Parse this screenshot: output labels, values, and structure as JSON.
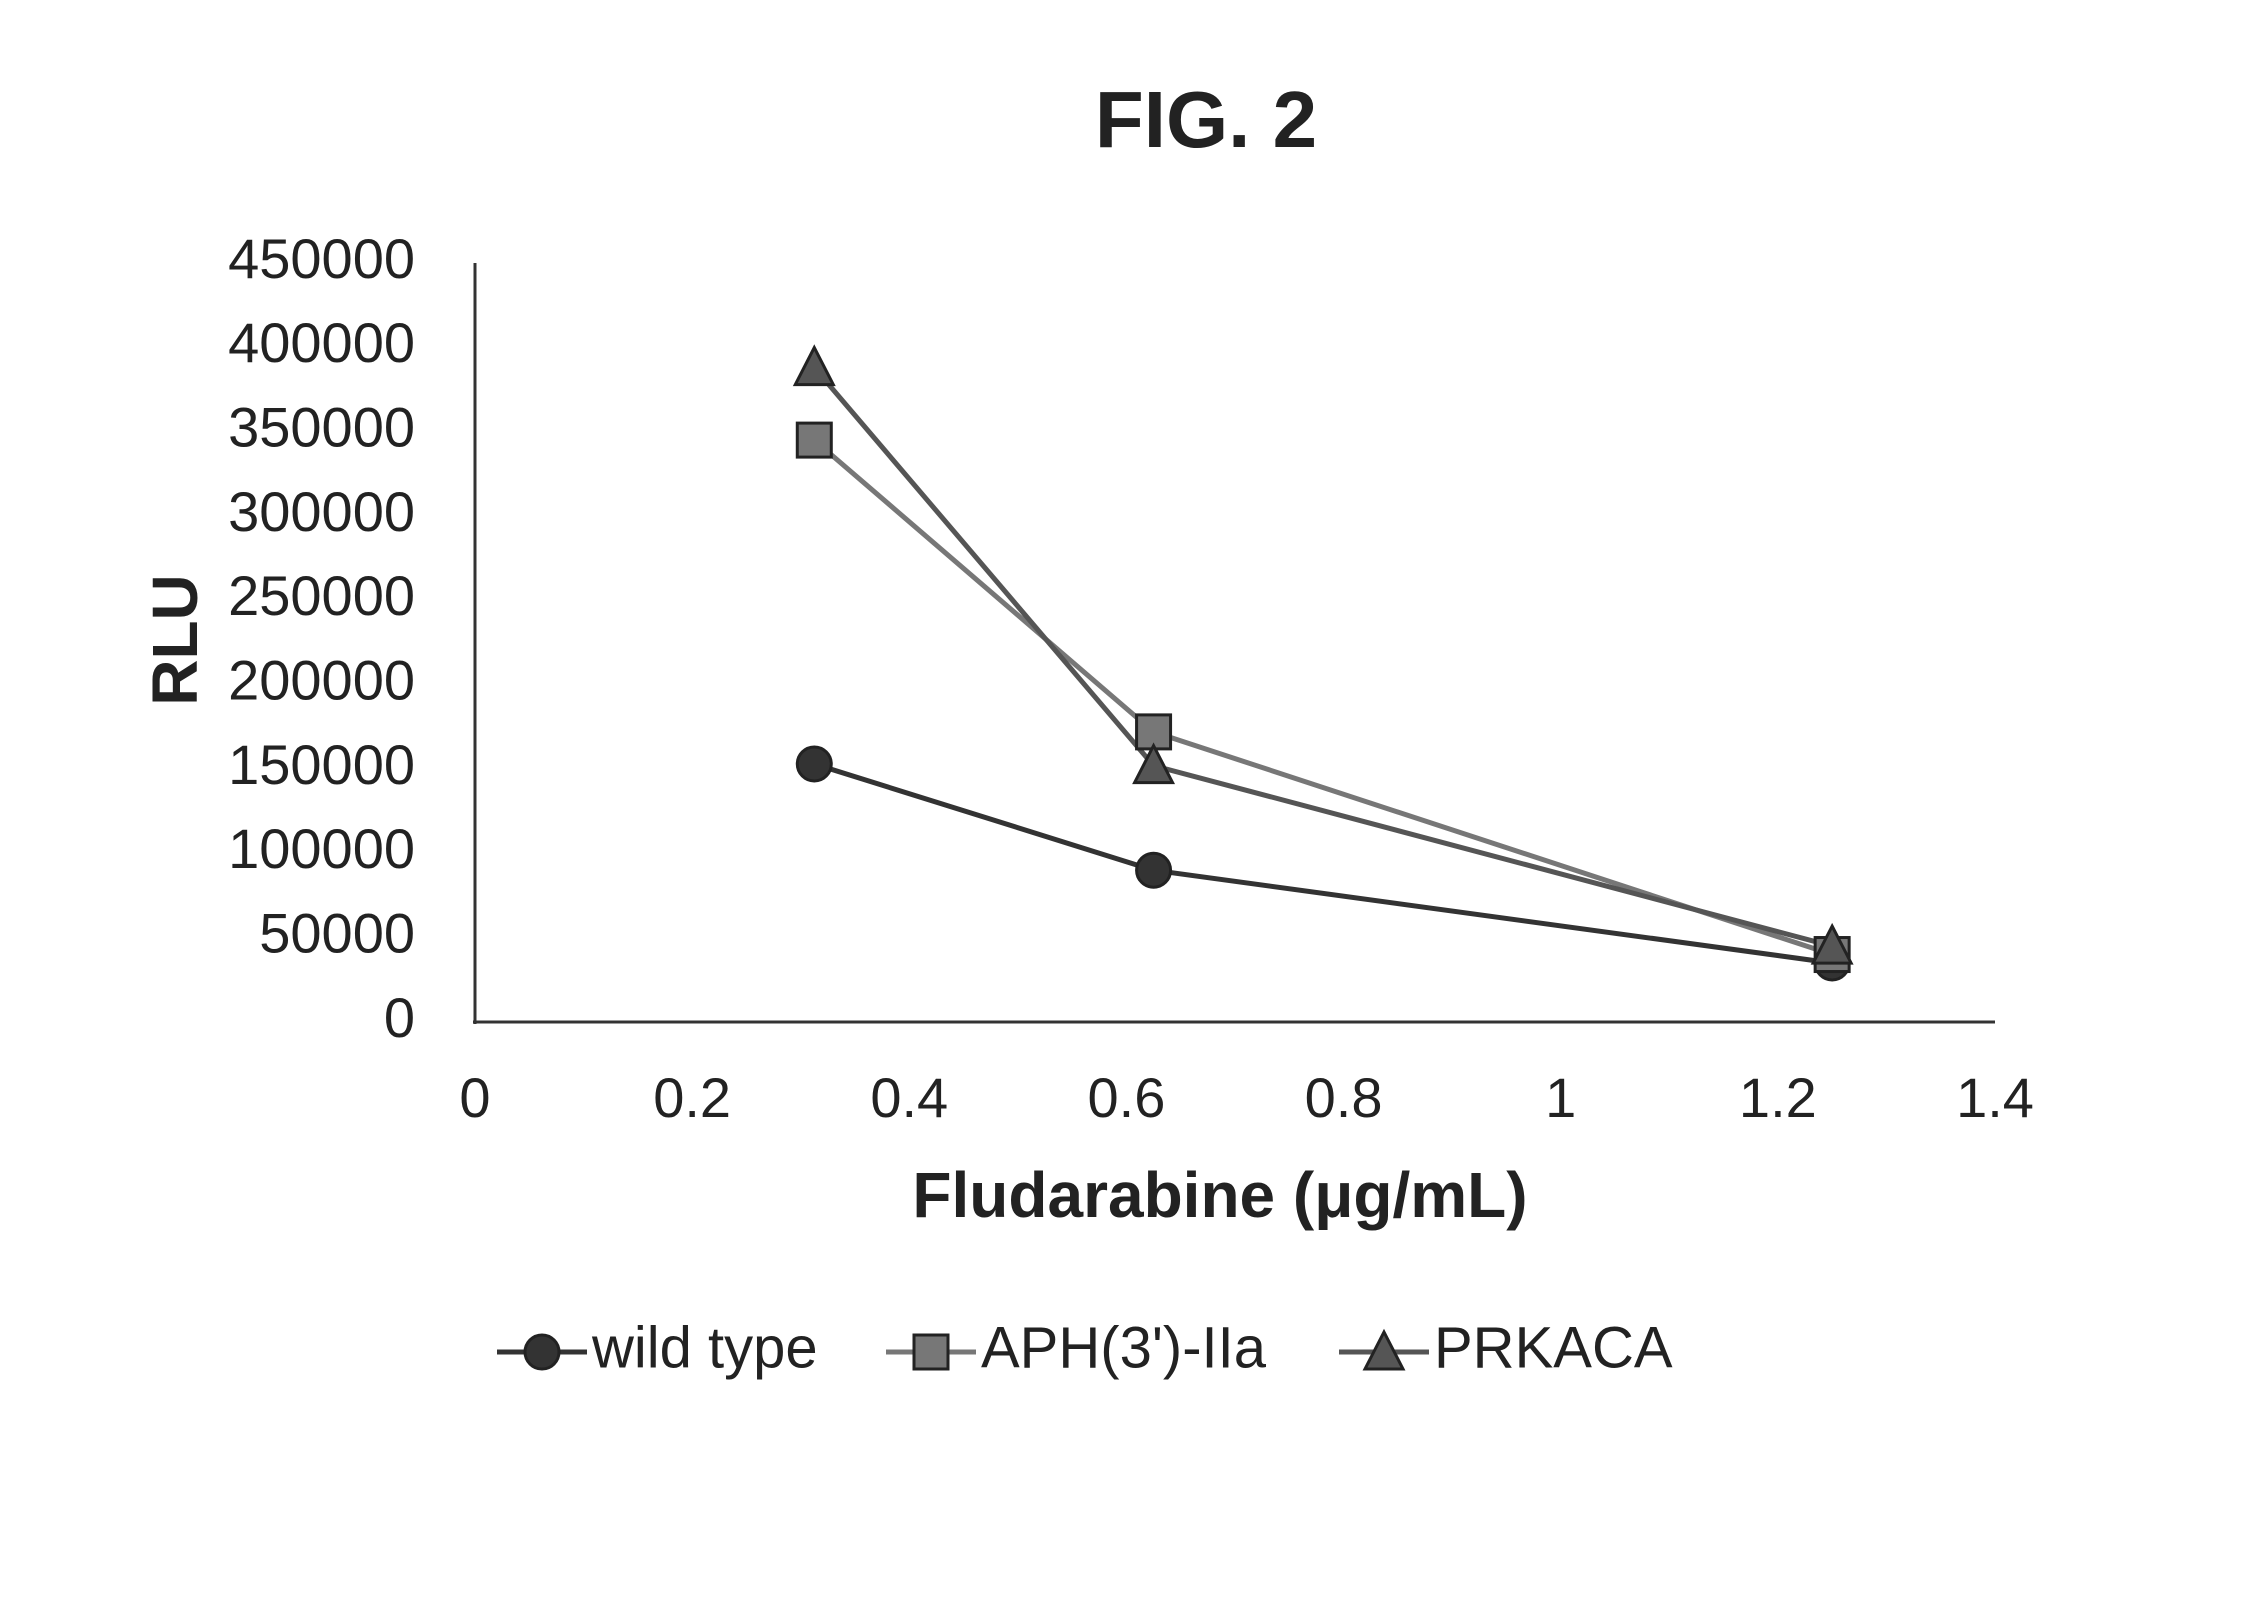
{
  "chart_data": {
    "type": "line",
    "title": "FIG. 2",
    "x_label": "Fludarabine (μg/mL)",
    "y_label": "RLU",
    "x": [
      0.3125,
      0.625,
      1.25
    ],
    "series": [
      {
        "name": "wild type",
        "color": "#333333",
        "marker": "circle",
        "values": [
          153000,
          90000,
          35000
        ]
      },
      {
        "name": "APH(3')-IIa",
        "color": "#777777",
        "marker": "square",
        "values": [
          345000,
          172000,
          40000
        ]
      },
      {
        "name": "PRKACA",
        "color": "#555555",
        "marker": "triangle",
        "values": [
          388000,
          152000,
          45000
        ]
      }
    ],
    "xlim": [
      0,
      1.4
    ],
    "xticks": [
      0,
      0.2,
      0.4,
      0.6,
      0.8,
      1,
      1.2,
      1.4
    ],
    "ylim": [
      0,
      450000
    ],
    "yticks": [
      0,
      50000,
      100000,
      150000,
      200000,
      250000,
      300000,
      350000,
      400000,
      450000
    ],
    "grid": false,
    "legend": "bottom"
  }
}
